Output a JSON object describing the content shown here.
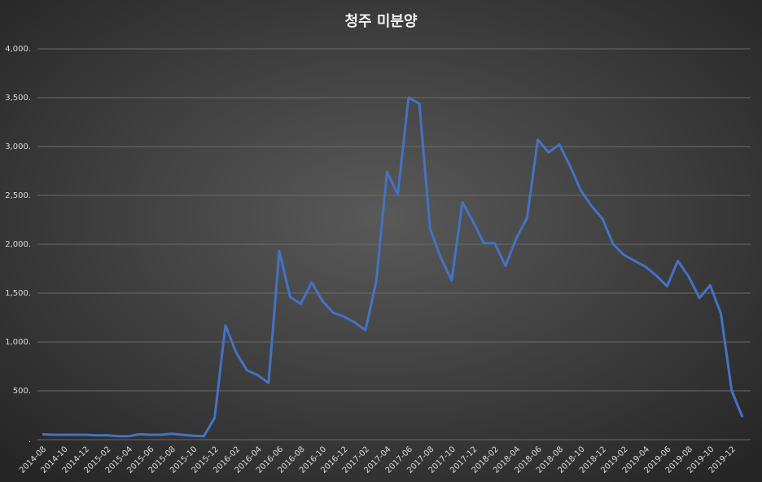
{
  "chart_data": {
    "type": "line",
    "title": "청주 미분양",
    "categories": [
      "2014-08",
      null,
      "2014-10",
      null,
      "2014-12",
      null,
      "2015-02",
      null,
      "2015-04",
      null,
      "2015-06",
      null,
      "2015-08",
      null,
      "2015-10",
      null,
      "2015-12",
      null,
      "2016-02",
      null,
      "2016-04",
      null,
      "2016-06",
      null,
      "2016-08",
      null,
      "2016-10",
      null,
      "2016-12",
      null,
      "2017-02",
      null,
      "2017-04",
      null,
      "2017-06",
      null,
      "2017-08",
      null,
      "2017-10",
      null,
      "2017-12",
      null,
      "2018-02",
      null,
      "2018-04",
      null,
      "2018-06",
      null,
      "2018-08",
      null,
      "2018-10",
      null,
      "2018-12",
      null,
      "2019-02",
      null,
      "2019-04",
      null,
      "2019-06",
      null,
      "2019-08",
      null,
      "2019-10",
      null,
      "2019-12",
      null
    ],
    "values": [
      55,
      50,
      50,
      50,
      50,
      45,
      45,
      35,
      35,
      55,
      50,
      50,
      60,
      50,
      40,
      35,
      225,
      1170,
      890,
      710,
      660,
      580,
      1930,
      1460,
      1390,
      1610,
      1420,
      1300,
      1260,
      1200,
      1120,
      1620,
      2740,
      2510,
      3500,
      3440,
      2160,
      1860,
      1630,
      2430,
      2230,
      2010,
      2010,
      1780,
      2060,
      2270,
      3070,
      2940,
      3020,
      2800,
      2550,
      2390,
      2260,
      2000,
      1890,
      1830,
      1770,
      1680,
      1570,
      1830,
      1670,
      1450,
      1580,
      1290,
      500,
      230
    ],
    "color": "#4472c4",
    "ylim": [
      0,
      4000
    ],
    "yticks": [
      {
        "value": 0,
        "label": "."
      },
      {
        "value": 500,
        "label": "500."
      },
      {
        "value": 1000,
        "label": "1,000."
      },
      {
        "value": 1500,
        "label": "1,500."
      },
      {
        "value": 2000,
        "label": "2,000."
      },
      {
        "value": 2500,
        "label": "2,500."
      },
      {
        "value": 3000,
        "label": "3,000."
      },
      {
        "value": 3500,
        "label": "3,500."
      },
      {
        "value": 4000,
        "label": "4,000."
      }
    ],
    "grid": true
  }
}
